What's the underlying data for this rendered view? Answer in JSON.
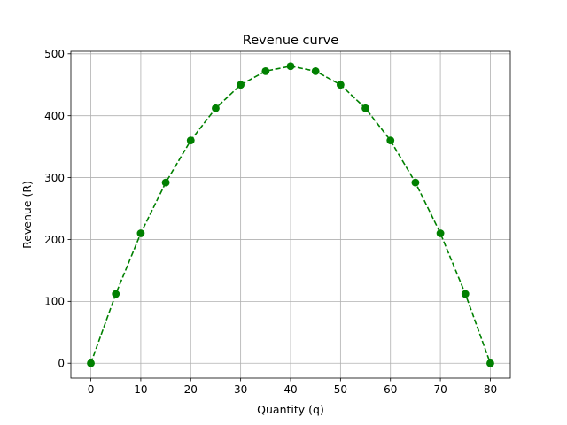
{
  "chart_data": {
    "type": "line",
    "title": "Revenue curve",
    "xlabel": "Quantity (q)",
    "ylabel": "Revenue (R)",
    "xlim": [
      -4,
      84
    ],
    "ylim": [
      -24,
      504
    ],
    "x_ticks": [
      0,
      10,
      20,
      30,
      40,
      50,
      60,
      70,
      80
    ],
    "y_ticks": [
      0,
      100,
      200,
      300,
      400,
      500
    ],
    "grid": true,
    "line_style": "dashed",
    "marker": "circle",
    "color": "#008000",
    "series": [
      {
        "x": [
          0,
          5,
          10,
          15,
          20,
          25,
          30,
          35,
          40,
          45,
          50,
          55,
          60,
          65,
          70,
          75,
          80
        ],
        "y": [
          0,
          112,
          210,
          292,
          360,
          412,
          450,
          472,
          480,
          472,
          450,
          412,
          360,
          292,
          210,
          112,
          0
        ]
      }
    ]
  }
}
